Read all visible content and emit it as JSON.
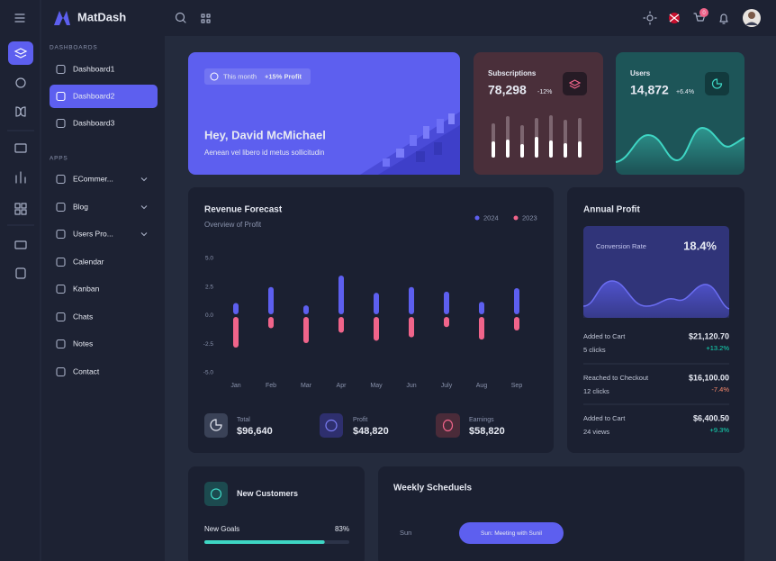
{
  "brand": "MatDash",
  "cart_badge": "0",
  "sidebar": {
    "sections": [
      {
        "title": "DASHBOARDS",
        "items": [
          "Dashboard1",
          "Dashboard2",
          "Dashboard3"
        ]
      },
      {
        "title": "APPS",
        "items": [
          "ECommer...",
          "Blog",
          "Users Pro...",
          "Calendar",
          "Kanban",
          "Chats",
          "Notes",
          "Contact"
        ]
      }
    ]
  },
  "welcome": {
    "badge_prefix": "This month",
    "badge_value": "+15% Profit",
    "title": "Hey, David McMichael",
    "subtitle": "Aenean vel libero id metus sollicitudin"
  },
  "subscriptions": {
    "title": "Subscriptions",
    "value": "78,298",
    "change": "-12%"
  },
  "users": {
    "title": "Users",
    "value": "14,872",
    "change": "+6.4%"
  },
  "revenue": {
    "title": "Revenue Forecast",
    "subtitle": "Overview of Profit",
    "categories": [
      "Jan",
      "Feb",
      "Mar",
      "Apr",
      "May",
      "Jun",
      "July",
      "Aug",
      "Sep"
    ],
    "series": [
      {
        "name": "2024",
        "color": "#5d5fef",
        "values": [
          1.1,
          2.5,
          0.9,
          3.5,
          2.0,
          2.5,
          2.1,
          1.2,
          2.4
        ]
      },
      {
        "name": "2023",
        "color": "#f0648a",
        "values": [
          -2.8,
          -1.1,
          -2.4,
          -1.5,
          -2.2,
          -1.9,
          -1.0,
          -2.1,
          -1.3
        ]
      }
    ],
    "ylim": [
      -5,
      5
    ],
    "yticks": [
      {
        "value": 5,
        "label": "5.0"
      },
      {
        "value": 2.5,
        "label": "2.5"
      },
      {
        "value": 0,
        "label": "0.0"
      },
      {
        "value": -2.5,
        "label": "-2.5"
      },
      {
        "value": -5,
        "label": "-5.0"
      }
    ],
    "totals": [
      {
        "label": "Total",
        "value": "$96,640"
      },
      {
        "label": "Profit",
        "value": "$48,820"
      },
      {
        "label": "Earnings",
        "value": "$58,820"
      }
    ]
  },
  "annual_profit": {
    "title": "Annual Profit",
    "conversion_label": "Conversion Rate",
    "conversion_value": "18.4%",
    "rows": [
      {
        "label": "Added to Cart",
        "sub": "5 clicks",
        "amount": "$21,120.70",
        "change": "+13.2%",
        "change_color": "#13deb9"
      },
      {
        "label": "Reached to Checkout",
        "sub": "12 clicks",
        "amount": "$16,100.00",
        "change": "-7.4%",
        "change_color": "#fa896b"
      },
      {
        "label": "Added to Cart",
        "sub": "24 views",
        "amount": "$6,400.50",
        "change": "+9.3%",
        "change_color": "#13deb9"
      }
    ]
  },
  "new_customers": {
    "title": "New Customers",
    "goal_label": "New Goals",
    "goal_value": 83,
    "goal_value_label": "83%"
  },
  "schedule": {
    "title": "Weekly Scheduels",
    "day": "Sun",
    "event": "Sun: Meeting with Sunil"
  }
}
